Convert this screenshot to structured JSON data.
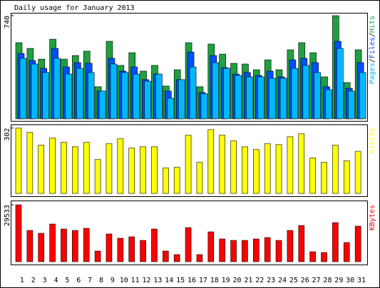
{
  "chart_data": [
    {
      "type": "bar",
      "title": "Daily usage for January 2013",
      "ylim": [
        0,
        740
      ],
      "yticks": [
        740
      ],
      "legend_separator": "/",
      "series": [
        {
          "name": "Hits",
          "color": "#20a040",
          "values": [
            546,
            505,
            428,
            571,
            428,
            454,
            485,
            230,
            556,
            383,
            474,
            342,
            383,
            235,
            352,
            546,
            230,
            536,
            464,
            398,
            393,
            352,
            423,
            352,
            495,
            546,
            474,
            301,
            740,
            260,
            495
          ]
        },
        {
          "name": "Files",
          "color": "#0050ff",
          "values": [
            469,
            418,
            362,
            505,
            372,
            403,
            398,
            199,
            434,
            342,
            372,
            281,
            321,
            199,
            281,
            479,
            189,
            454,
            367,
            321,
            332,
            311,
            342,
            301,
            423,
            434,
            403,
            230,
            556,
            219,
            403
          ]
        },
        {
          "name": "Pages",
          "color": "#00b8ff",
          "values": [
            434,
            393,
            332,
            434,
            321,
            362,
            332,
            199,
            393,
            332,
            321,
            270,
            321,
            148,
            281,
            372,
            179,
            403,
            362,
            311,
            301,
            301,
            291,
            291,
            362,
            383,
            332,
            209,
            505,
            199,
            332
          ]
        }
      ]
    },
    {
      "type": "bar",
      "ylim": [
        0,
        302
      ],
      "yticks": [
        302
      ],
      "series": [
        {
          "name": "Visits",
          "color": "#ffff00",
          "values": [
            302,
            282,
            223,
            256,
            236,
            216,
            236,
            157,
            230,
            253,
            210,
            216,
            216,
            118,
            121,
            269,
            144,
            295,
            269,
            243,
            216,
            203,
            230,
            226,
            262,
            276,
            164,
            144,
            223,
            151,
            194
          ]
        }
      ]
    },
    {
      "type": "bar",
      "ylim": [
        0,
        29533
      ],
      "yticks": [
        29533
      ],
      "categories": [
        "1",
        "2",
        "3",
        "4",
        "5",
        "6",
        "7",
        "8",
        "9",
        "10",
        "11",
        "12",
        "13",
        "14",
        "15",
        "16",
        "17",
        "18",
        "19",
        "20",
        "21",
        "22",
        "23",
        "24",
        "25",
        "26",
        "27",
        "28",
        "29",
        "30",
        "31"
      ],
      "category_colors": [
        "#000080",
        "#000080",
        "#000080",
        "#000080",
        "#00a000",
        "#00a000",
        "#000080",
        "#000080",
        "#000080",
        "#000080",
        "#000080",
        "#00a000",
        "#00a000",
        "#000080",
        "#000080",
        "#000080",
        "#000080",
        "#000080",
        "#00a000",
        "#00a000",
        "#000080",
        "#000080",
        "#000080",
        "#000080",
        "#000080",
        "#00a000",
        "#00a000",
        "#000080",
        "#000080",
        "#000080",
        "#000080"
      ],
      "series": [
        {
          "name": "KBytes",
          "color": "#ff0000",
          "values": [
            29533,
            16236,
            14760,
            19557,
            16974,
            16236,
            17343,
            5535,
            14391,
            12177,
            12915,
            11070,
            16974,
            5535,
            3690,
            17712,
            3690,
            15498,
            11808,
            11070,
            11070,
            11808,
            12546,
            11070,
            16236,
            18819,
            5166,
            4797,
            20295,
            9963,
            18450
          ]
        }
      ]
    }
  ]
}
